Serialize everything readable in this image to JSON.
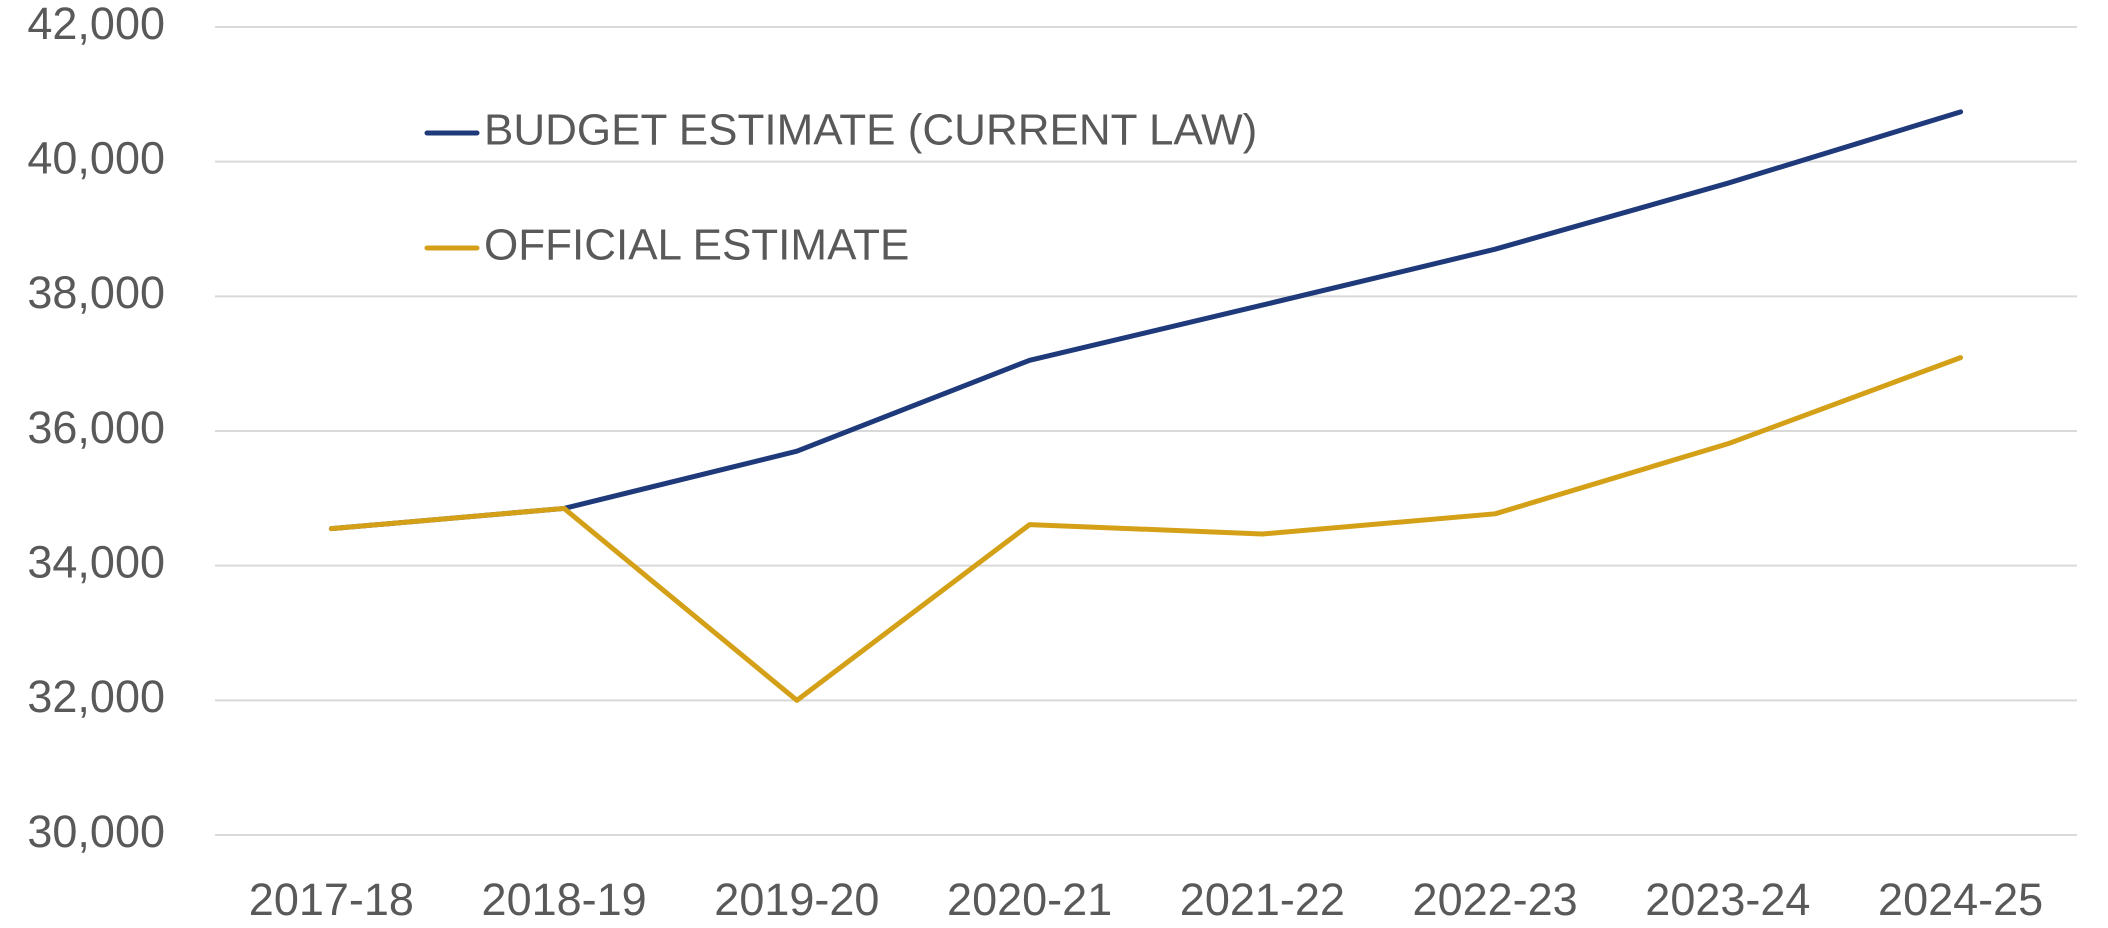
{
  "chart_data": {
    "type": "line",
    "categories": [
      "2017-18",
      "2018-19",
      "2019-20",
      "2020-21",
      "2021-22",
      "2022-23",
      "2023-24",
      "2024-25"
    ],
    "series": [
      {
        "name": "BUDGET ESTIMATE (CURRENT LAW)",
        "color": "#1f3a7a",
        "values": [
          34550,
          34850,
          35700,
          37050,
          37870,
          38700,
          39680,
          40740
        ]
      },
      {
        "name": "OFFICIAL ESTIMATE",
        "color": "#d4a017",
        "values": [
          34550,
          34850,
          32000,
          34610,
          34470,
          34770,
          35810,
          37090
        ]
      }
    ],
    "ylim": [
      30000,
      42000
    ],
    "yticks": [
      {
        "value": 30000,
        "label": "30,000"
      },
      {
        "value": 32000,
        "label": "32,000"
      },
      {
        "value": 34000,
        "label": "34,000"
      },
      {
        "value": 36000,
        "label": "36,000"
      },
      {
        "value": 38000,
        "label": "38,000"
      },
      {
        "value": 40000,
        "label": "40,000"
      },
      {
        "value": 42000,
        "label": "42,000"
      }
    ],
    "grid": true,
    "legend": "top-left"
  }
}
